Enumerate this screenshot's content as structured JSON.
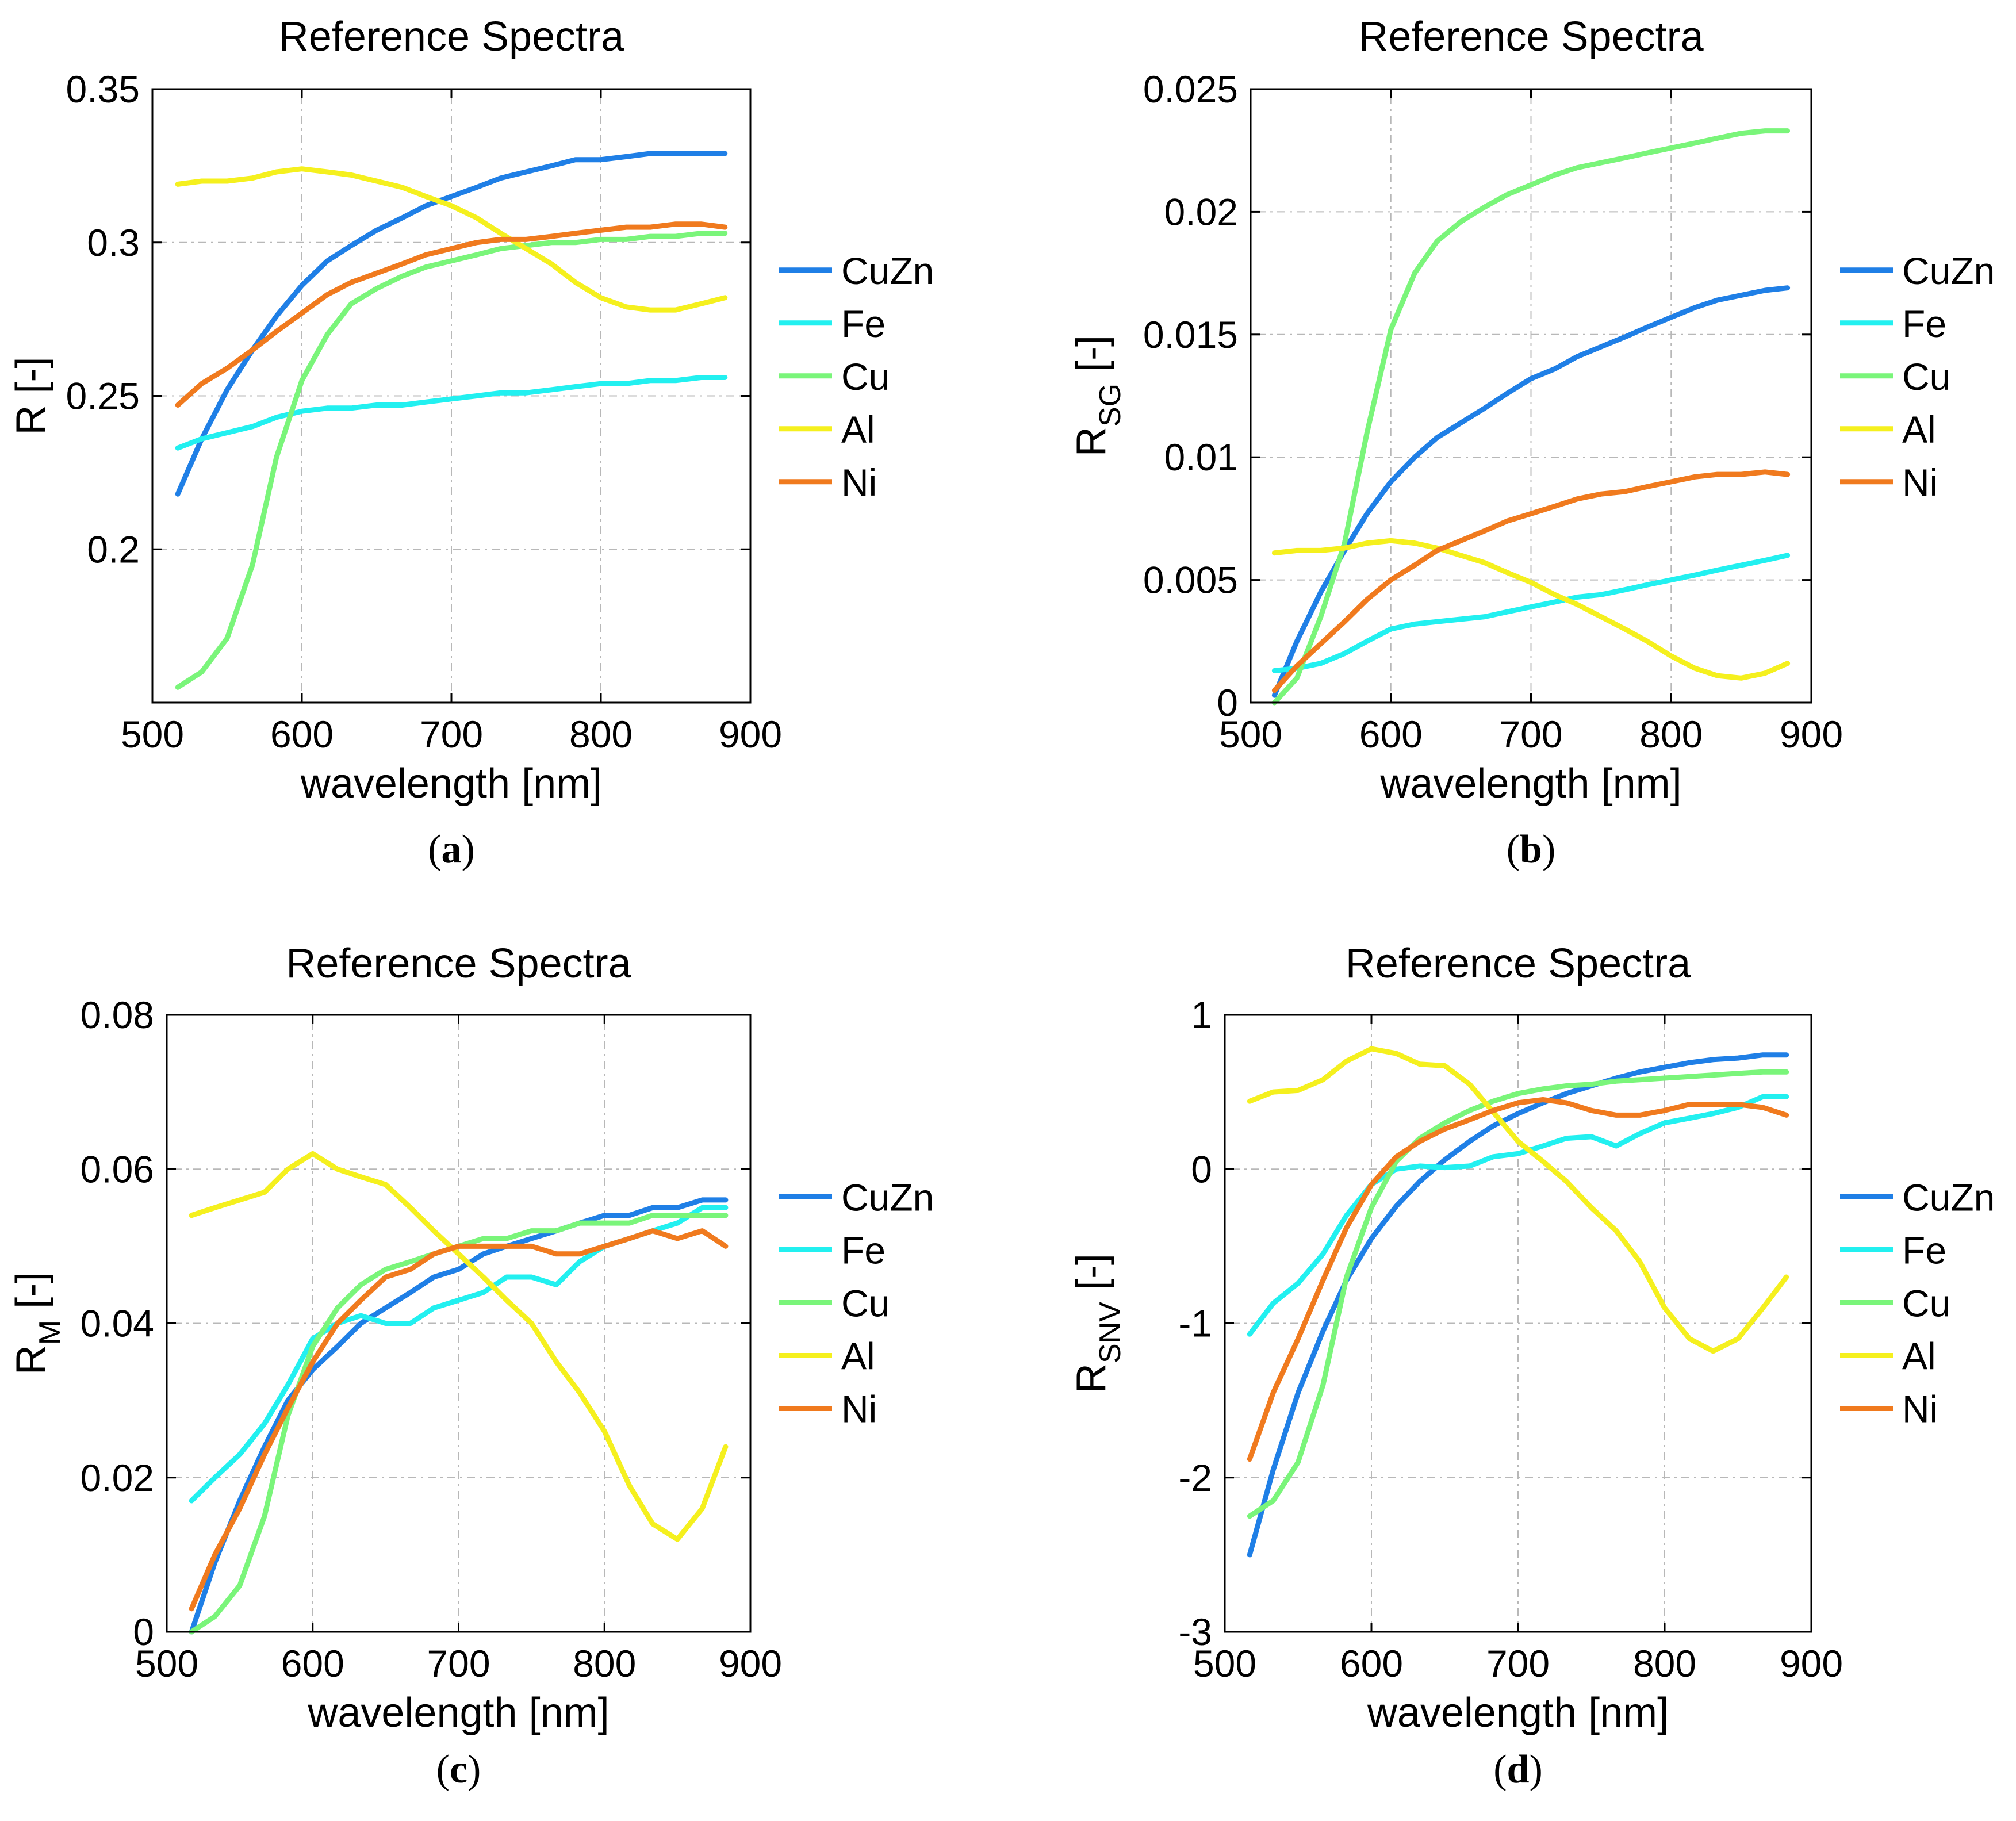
{
  "chart_data": [
    {
      "type": "line",
      "title": "Reference Spectra",
      "xlabel": "wavelength [nm]",
      "ylabel": {
        "main": "R",
        "sub": "",
        "suffix": " [-]"
      },
      "caption": {
        "open": "(",
        "letter": "a",
        "close": ")"
      },
      "xlim": [
        500,
        900
      ],
      "ylim": [
        0.15,
        0.35
      ],
      "xticks": [
        500,
        600,
        700,
        800,
        900
      ],
      "xtick_labels": [
        "500",
        "600",
        "700",
        "800",
        "900"
      ],
      "yticks": [
        0.2,
        0.25,
        0.3,
        0.35
      ],
      "ytick_labels": [
        "0.2",
        "0.25",
        "0.3",
        "0.35"
      ],
      "grid": true,
      "legend_position": "outside-right",
      "x": [
        517,
        533,
        550,
        567,
        583,
        600,
        617,
        633,
        650,
        667,
        683,
        700,
        717,
        733,
        750,
        767,
        783,
        800,
        817,
        833,
        850,
        867,
        883
      ],
      "series": [
        {
          "name": "CuZn",
          "color": "#1f7fe6",
          "values": [
            0.218,
            0.236,
            0.252,
            0.265,
            0.276,
            0.286,
            0.294,
            0.299,
            0.304,
            0.308,
            0.312,
            0.315,
            0.318,
            0.321,
            0.323,
            0.325,
            0.327,
            0.327,
            0.328,
            0.329,
            0.329,
            0.329,
            0.329
          ]
        },
        {
          "name": "Fe",
          "color": "#22f0f0",
          "values": [
            0.233,
            0.236,
            0.238,
            0.24,
            0.243,
            0.245,
            0.246,
            0.246,
            0.247,
            0.247,
            0.248,
            0.249,
            0.25,
            0.251,
            0.251,
            0.252,
            0.253,
            0.254,
            0.254,
            0.255,
            0.255,
            0.256,
            0.256
          ]
        },
        {
          "name": "Cu",
          "color": "#7af57a",
          "values": [
            0.155,
            0.16,
            0.171,
            0.195,
            0.23,
            0.255,
            0.27,
            0.28,
            0.285,
            0.289,
            0.292,
            0.294,
            0.296,
            0.298,
            0.299,
            0.3,
            0.3,
            0.301,
            0.301,
            0.302,
            0.302,
            0.303,
            0.303
          ]
        },
        {
          "name": "Al",
          "color": "#f5f01e",
          "values": [
            0.319,
            0.32,
            0.32,
            0.321,
            0.323,
            0.324,
            0.323,
            0.322,
            0.32,
            0.318,
            0.315,
            0.312,
            0.308,
            0.303,
            0.298,
            0.293,
            0.287,
            0.282,
            0.279,
            0.278,
            0.278,
            0.28,
            0.282
          ]
        },
        {
          "name": "Ni",
          "color": "#f07a1e",
          "values": [
            0.247,
            0.254,
            0.259,
            0.265,
            0.271,
            0.277,
            0.283,
            0.287,
            0.29,
            0.293,
            0.296,
            0.298,
            0.3,
            0.301,
            0.301,
            0.302,
            0.303,
            0.304,
            0.305,
            0.305,
            0.306,
            0.306,
            0.305
          ]
        }
      ]
    },
    {
      "type": "line",
      "title": "Reference Spectra",
      "xlabel": "wavelength [nm]",
      "ylabel": {
        "main": "R",
        "sub": "SG",
        "suffix": " [-]"
      },
      "caption": {
        "open": "(",
        "letter": "b",
        "close": ")"
      },
      "xlim": [
        500,
        900
      ],
      "ylim": [
        0,
        0.025
      ],
      "xticks": [
        500,
        600,
        700,
        800,
        900
      ],
      "xtick_labels": [
        "500",
        "600",
        "700",
        "800",
        "900"
      ],
      "yticks": [
        0,
        0.005,
        0.01,
        0.015,
        0.02,
        0.025
      ],
      "ytick_labels": [
        "0",
        "0.005",
        "0.01",
        "0.015",
        "0.02",
        "0.025"
      ],
      "grid": true,
      "legend_position": "outside-right",
      "x": [
        517,
        533,
        550,
        567,
        583,
        600,
        617,
        633,
        650,
        667,
        683,
        700,
        717,
        733,
        750,
        767,
        783,
        800,
        817,
        833,
        850,
        867,
        883
      ],
      "series": [
        {
          "name": "CuZn",
          "color": "#1f7fe6",
          "values": [
            0.0003,
            0.0025,
            0.0045,
            0.0062,
            0.0077,
            0.009,
            0.01,
            0.0108,
            0.0114,
            0.012,
            0.0126,
            0.0132,
            0.0136,
            0.0141,
            0.0145,
            0.0149,
            0.0153,
            0.0157,
            0.0161,
            0.0164,
            0.0166,
            0.0168,
            0.0169
          ]
        },
        {
          "name": "Fe",
          "color": "#22f0f0",
          "values": [
            0.0013,
            0.0014,
            0.0016,
            0.002,
            0.0025,
            0.003,
            0.0032,
            0.0033,
            0.0034,
            0.0035,
            0.0037,
            0.0039,
            0.0041,
            0.0043,
            0.0044,
            0.0046,
            0.0048,
            0.005,
            0.0052,
            0.0054,
            0.0056,
            0.0058,
            0.006
          ]
        },
        {
          "name": "Cu",
          "color": "#7af57a",
          "values": [
            0.0,
            0.001,
            0.0035,
            0.0065,
            0.011,
            0.0152,
            0.0175,
            0.0188,
            0.0196,
            0.0202,
            0.0207,
            0.0211,
            0.0215,
            0.0218,
            0.022,
            0.0222,
            0.0224,
            0.0226,
            0.0228,
            0.023,
            0.0232,
            0.0233,
            0.0233
          ]
        },
        {
          "name": "Al",
          "color": "#f5f01e",
          "values": [
            0.0061,
            0.0062,
            0.0062,
            0.0063,
            0.0065,
            0.0066,
            0.0065,
            0.0063,
            0.006,
            0.0057,
            0.0053,
            0.0049,
            0.0044,
            0.004,
            0.0035,
            0.003,
            0.0025,
            0.0019,
            0.0014,
            0.0011,
            0.001,
            0.0012,
            0.0016
          ]
        },
        {
          "name": "Ni",
          "color": "#f07a1e",
          "values": [
            0.0005,
            0.0015,
            0.0024,
            0.0033,
            0.0042,
            0.005,
            0.0056,
            0.0062,
            0.0066,
            0.007,
            0.0074,
            0.0077,
            0.008,
            0.0083,
            0.0085,
            0.0086,
            0.0088,
            0.009,
            0.0092,
            0.0093,
            0.0093,
            0.0094,
            0.0093
          ]
        }
      ]
    },
    {
      "type": "line",
      "title": "Reference Spectra",
      "xlabel": "wavelength [nm]",
      "ylabel": {
        "main": "R",
        "sub": "M",
        "suffix": " [-]"
      },
      "caption": {
        "open": "(",
        "letter": "c",
        "close": ")"
      },
      "xlim": [
        500,
        900
      ],
      "ylim": [
        0,
        0.08
      ],
      "xticks": [
        500,
        600,
        700,
        800,
        900
      ],
      "xtick_labels": [
        "500",
        "600",
        "700",
        "800",
        "900"
      ],
      "yticks": [
        0,
        0.02,
        0.04,
        0.06,
        0.08
      ],
      "ytick_labels": [
        "0",
        "0.02",
        "0.04",
        "0.06",
        "0.08"
      ],
      "grid": true,
      "legend_position": "outside-right",
      "x": [
        517,
        533,
        550,
        567,
        583,
        600,
        617,
        633,
        650,
        667,
        683,
        700,
        717,
        733,
        750,
        767,
        783,
        800,
        817,
        833,
        850,
        867,
        883
      ],
      "series": [
        {
          "name": "CuZn",
          "color": "#1f7fe6",
          "values": [
            0.0,
            0.009,
            0.017,
            0.024,
            0.03,
            0.034,
            0.037,
            0.04,
            0.042,
            0.044,
            0.046,
            0.047,
            0.049,
            0.05,
            0.051,
            0.052,
            0.053,
            0.054,
            0.054,
            0.055,
            0.055,
            0.056,
            0.056
          ]
        },
        {
          "name": "Fe",
          "color": "#22f0f0",
          "values": [
            0.017,
            0.02,
            0.023,
            0.027,
            0.032,
            0.038,
            0.04,
            0.041,
            0.04,
            0.04,
            0.042,
            0.043,
            0.044,
            0.046,
            0.046,
            0.045,
            0.048,
            0.05,
            0.051,
            0.052,
            0.053,
            0.055,
            0.055
          ]
        },
        {
          "name": "Cu",
          "color": "#7af57a",
          "values": [
            0.0,
            0.002,
            0.006,
            0.015,
            0.028,
            0.037,
            0.042,
            0.045,
            0.047,
            0.048,
            0.049,
            0.05,
            0.051,
            0.051,
            0.052,
            0.052,
            0.053,
            0.053,
            0.053,
            0.054,
            0.054,
            0.054,
            0.054
          ]
        },
        {
          "name": "Al",
          "color": "#f5f01e",
          "values": [
            0.054,
            0.055,
            0.056,
            0.057,
            0.06,
            0.062,
            0.06,
            0.059,
            0.058,
            0.055,
            0.052,
            0.049,
            0.046,
            0.043,
            0.04,
            0.035,
            0.031,
            0.026,
            0.019,
            0.014,
            0.012,
            0.016,
            0.024
          ]
        },
        {
          "name": "Ni",
          "color": "#f07a1e",
          "values": [
            0.003,
            0.01,
            0.016,
            0.023,
            0.029,
            0.035,
            0.04,
            0.043,
            0.046,
            0.047,
            0.049,
            0.05,
            0.05,
            0.05,
            0.05,
            0.049,
            0.049,
            0.05,
            0.051,
            0.052,
            0.051,
            0.052,
            0.05
          ]
        }
      ]
    },
    {
      "type": "line",
      "title": "Reference Spectra",
      "xlabel": "wavelength [nm]",
      "ylabel": {
        "main": "R",
        "sub": "SNV",
        "suffix": " [-]"
      },
      "caption": {
        "open": "(",
        "letter": "d",
        "close": ")"
      },
      "xlim": [
        500,
        900
      ],
      "ylim": [
        -3,
        1
      ],
      "xticks": [
        500,
        600,
        700,
        800,
        900
      ],
      "xtick_labels": [
        "500",
        "600",
        "700",
        "800",
        "900"
      ],
      "yticks": [
        -3,
        -2,
        -1,
        0,
        1
      ],
      "ytick_labels": [
        "-3",
        "-2",
        "-1",
        "0",
        "1"
      ],
      "grid": true,
      "legend_position": "outside-right",
      "x": [
        517,
        533,
        550,
        567,
        583,
        600,
        617,
        633,
        650,
        667,
        683,
        700,
        717,
        733,
        750,
        767,
        783,
        800,
        817,
        833,
        850,
        867,
        883
      ],
      "series": [
        {
          "name": "CuZn",
          "color": "#1f7fe6",
          "values": [
            -2.5,
            -1.95,
            -1.45,
            -1.05,
            -0.72,
            -0.45,
            -0.24,
            -0.08,
            0.06,
            0.18,
            0.28,
            0.36,
            0.43,
            0.49,
            0.54,
            0.59,
            0.63,
            0.66,
            0.69,
            0.71,
            0.72,
            0.74,
            0.74
          ]
        },
        {
          "name": "Fe",
          "color": "#22f0f0",
          "values": [
            -1.07,
            -0.87,
            -0.74,
            -0.55,
            -0.3,
            -0.1,
            0.0,
            0.02,
            0.01,
            0.02,
            0.08,
            0.1,
            0.15,
            0.2,
            0.21,
            0.15,
            0.23,
            0.3,
            0.33,
            0.36,
            0.4,
            0.47,
            0.47
          ]
        },
        {
          "name": "Cu",
          "color": "#7af57a",
          "values": [
            -2.25,
            -2.15,
            -1.9,
            -1.4,
            -0.7,
            -0.25,
            0.05,
            0.2,
            0.3,
            0.38,
            0.44,
            0.49,
            0.52,
            0.54,
            0.55,
            0.57,
            0.58,
            0.59,
            0.6,
            0.61,
            0.62,
            0.63,
            0.63
          ]
        },
        {
          "name": "Al",
          "color": "#f5f01e",
          "values": [
            0.44,
            0.5,
            0.51,
            0.58,
            0.7,
            0.78,
            0.75,
            0.68,
            0.67,
            0.55,
            0.37,
            0.18,
            0.05,
            -0.08,
            -0.25,
            -0.4,
            -0.6,
            -0.9,
            -1.1,
            -1.18,
            -1.1,
            -0.9,
            -0.7
          ]
        },
        {
          "name": "Ni",
          "color": "#f07a1e",
          "values": [
            -1.88,
            -1.45,
            -1.1,
            -0.72,
            -0.38,
            -0.1,
            0.08,
            0.18,
            0.26,
            0.32,
            0.38,
            0.43,
            0.45,
            0.43,
            0.38,
            0.35,
            0.35,
            0.38,
            0.42,
            0.42,
            0.42,
            0.4,
            0.35
          ]
        }
      ]
    }
  ]
}
